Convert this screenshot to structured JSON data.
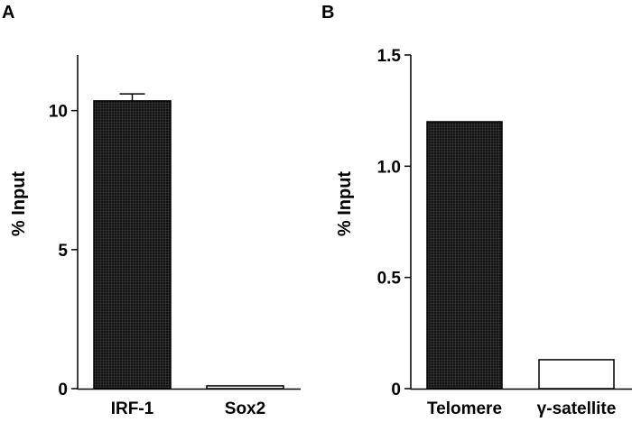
{
  "chart_data": [
    {
      "panel": "A",
      "type": "bar",
      "title": "",
      "xlabel": "",
      "ylabel": "% Input",
      "ylim": [
        0,
        12
      ],
      "yticks": [
        0,
        5,
        10
      ],
      "ytick_labels": [
        "0",
        "5",
        "10"
      ],
      "categories": [
        "IRF-1",
        "Sox2"
      ],
      "values": [
        10.35,
        0.1
      ],
      "errors": [
        0.25,
        0.0
      ],
      "fills": [
        "#1a1a1a",
        "#ffffff"
      ],
      "grid": false,
      "legend": false
    },
    {
      "panel": "B",
      "type": "bar",
      "title": "",
      "xlabel": "",
      "ylabel": "% Input",
      "ylim": [
        0,
        1.5
      ],
      "yticks": [
        0,
        0.5,
        1.0,
        1.5
      ],
      "ytick_labels": [
        "0",
        "0.5",
        "1.0",
        "1.5"
      ],
      "categories": [
        "Telomere",
        "γ-satellite"
      ],
      "values": [
        1.2,
        0.13
      ],
      "errors": [
        0,
        0
      ],
      "fills": [
        "#1a1a1a",
        "#ffffff"
      ],
      "grid": false,
      "legend": false
    }
  ]
}
